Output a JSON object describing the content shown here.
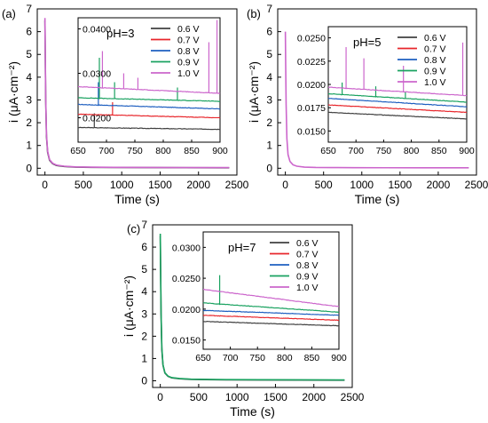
{
  "chart_data": [
    {
      "panel_label": "(a)",
      "type": "line",
      "xlabel": "Time (s)",
      "ylabel": "i (μA·cm⁻²)",
      "xlim": [
        -100,
        2500
      ],
      "ylim": [
        -0.3,
        7
      ],
      "xticks": [
        0,
        500,
        1000,
        1500,
        2000,
        2500
      ],
      "yticks": [
        0,
        1,
        2,
        3,
        4,
        5,
        6,
        7
      ],
      "grid": false,
      "main_series": [
        {
          "name": "0.6 V",
          "color": "#404040",
          "x": [
            0,
            4,
            10,
            20,
            35,
            60,
            100,
            150,
            250,
            400,
            600,
            900,
            1300,
            1800,
            2400
          ],
          "y": [
            6.5,
            5.0,
            3.0,
            1.4,
            0.7,
            0.35,
            0.2,
            0.12,
            0.08,
            0.05,
            0.04,
            0.035,
            0.03,
            0.025,
            0.02
          ]
        },
        {
          "name": "1.0 V",
          "color": "#cc66cc",
          "x": [
            0,
            4,
            10,
            20,
            35,
            60,
            100,
            150,
            250,
            400,
            600,
            900,
            1300,
            1800,
            2400
          ],
          "y": [
            6.6,
            5.1,
            3.1,
            1.5,
            0.75,
            0.38,
            0.22,
            0.14,
            0.09,
            0.06,
            0.05,
            0.04,
            0.035,
            0.03,
            0.028
          ]
        }
      ],
      "inset": {
        "annotation": "pH=3",
        "xlim": [
          650,
          900
        ],
        "ylim": [
          0.0145,
          0.0425
        ],
        "xticks": [
          650,
          700,
          750,
          800,
          850,
          900
        ],
        "yticks": [
          0.02,
          0.03,
          0.04
        ],
        "ytick_labels": [
          "0.0200",
          "0.0300",
          "0.0400"
        ],
        "legend_position": "top-right",
        "series": [
          {
            "name": "0.6 V",
            "color": "#404040",
            "y_start": 0.0178,
            "y_end": 0.0174,
            "spikes": [
              [
                678,
                0.021
              ]
            ]
          },
          {
            "name": "0.7 V",
            "color": "#e8262b",
            "y_start": 0.0208,
            "y_end": 0.02,
            "spikes": [
              [
                710,
                0.0235
              ]
            ]
          },
          {
            "name": "0.8 V",
            "color": "#1e5fc0",
            "y_start": 0.023,
            "y_end": 0.022,
            "spikes": [
              [
                685,
                0.028
              ]
            ]
          },
          {
            "name": "0.9 V",
            "color": "#1aa260",
            "y_start": 0.0245,
            "y_end": 0.0237,
            "spikes": [
              [
                688,
                0.0335
              ],
              [
                715,
                0.028
              ],
              [
                825,
                0.0268
              ]
            ]
          },
          {
            "name": "1.0 V",
            "color": "#cc66cc",
            "y_start": 0.027,
            "y_end": 0.0255,
            "spikes": [
              [
                692,
                0.035
              ],
              [
                730,
                0.03
              ],
              [
                755,
                0.029
              ],
              [
                880,
                0.037
              ],
              [
                895,
                0.042
              ]
            ]
          }
        ]
      }
    },
    {
      "panel_label": "(b)",
      "type": "line",
      "xlabel": "Time (s)",
      "ylabel": "i (μA·cm⁻²)",
      "xlim": [
        -100,
        2500
      ],
      "ylim": [
        -0.3,
        7
      ],
      "xticks": [
        0,
        500,
        1000,
        1500,
        2000,
        2500
      ],
      "yticks": [
        0,
        1,
        2,
        3,
        4,
        5,
        6,
        7
      ],
      "grid": false,
      "main_series": [
        {
          "name": "1.0 V",
          "color": "#cc66cc",
          "x": [
            0,
            4,
            10,
            20,
            35,
            60,
            100,
            150,
            250,
            400,
            600,
            900,
            1300,
            1800,
            2400
          ],
          "y": [
            6.0,
            4.6,
            2.8,
            1.3,
            0.6,
            0.3,
            0.15,
            0.09,
            0.05,
            0.035,
            0.03,
            0.025,
            0.022,
            0.02,
            0.02
          ]
        }
      ],
      "inset": {
        "annotation": "pH=5",
        "xlim": [
          650,
          900
        ],
        "ylim": [
          0.0138,
          0.0262
        ],
        "xticks": [
          650,
          700,
          750,
          800,
          850,
          900
        ],
        "yticks": [
          0.015,
          0.0175,
          0.02,
          0.0225,
          0.025
        ],
        "ytick_labels": [
          "0.0150",
          "0.0175",
          "0.0200",
          "0.0225",
          "0.0250"
        ],
        "legend_position": "top-right",
        "series": [
          {
            "name": "0.6 V",
            "color": "#404040",
            "y_start": 0.017,
            "y_end": 0.0163,
            "spikes": []
          },
          {
            "name": "0.7 V",
            "color": "#e8262b",
            "y_start": 0.0178,
            "y_end": 0.017,
            "spikes": []
          },
          {
            "name": "0.8 V",
            "color": "#1e5fc0",
            "y_start": 0.0185,
            "y_end": 0.0176,
            "spikes": []
          },
          {
            "name": "0.9 V",
            "color": "#1aa260",
            "y_start": 0.019,
            "y_end": 0.0181,
            "spikes": [
              [
                675,
                0.0202
              ],
              [
                735,
                0.0198
              ],
              [
                790,
                0.0192
              ]
            ]
          },
          {
            "name": "1.0 V",
            "color": "#cc66cc",
            "y_start": 0.0197,
            "y_end": 0.0188,
            "spikes": [
              [
                682,
                0.024
              ],
              [
                715,
                0.0228
              ],
              [
                785,
                0.022
              ],
              [
                893,
                0.0245
              ]
            ]
          }
        ]
      }
    },
    {
      "panel_label": "(c)",
      "type": "line",
      "xlabel": "Time (s)",
      "ylabel": "i (μA·cm⁻²)",
      "xlim": [
        -100,
        2500
      ],
      "ylim": [
        -0.3,
        7
      ],
      "xticks": [
        0,
        500,
        1000,
        1500,
        2000,
        2500
      ],
      "yticks": [
        0,
        1,
        2,
        3,
        4,
        5,
        6,
        7
      ],
      "grid": false,
      "main_series": [
        {
          "name": "0.6 V",
          "color": "#404040",
          "x": [
            0,
            4,
            10,
            20,
            35,
            60,
            100,
            150,
            250,
            400,
            600,
            900,
            1300,
            1800,
            2400
          ],
          "y": [
            6.5,
            5.0,
            3.0,
            1.4,
            0.7,
            0.35,
            0.2,
            0.13,
            0.09,
            0.06,
            0.05,
            0.04,
            0.035,
            0.03,
            0.028
          ]
        },
        {
          "name": "0.9 V",
          "color": "#1aa260",
          "x": [
            0,
            4,
            10,
            20,
            35,
            60,
            100,
            150,
            250,
            400,
            600,
            900,
            1300,
            1800,
            2400
          ],
          "y": [
            6.6,
            5.1,
            3.1,
            1.5,
            0.72,
            0.36,
            0.21,
            0.14,
            0.1,
            0.07,
            0.06,
            0.05,
            0.045,
            0.04,
            0.035
          ]
        }
      ],
      "inset": {
        "annotation": "pH=7",
        "xlim": [
          650,
          900
        ],
        "ylim": [
          0.0135,
          0.0325
        ],
        "xticks": [
          650,
          700,
          750,
          800,
          850,
          900
        ],
        "yticks": [
          0.015,
          0.02,
          0.025,
          0.03
        ],
        "ytick_labels": [
          "0.0150",
          "0.0200",
          "0.0250",
          "0.0300"
        ],
        "legend_position": "top-right",
        "series": [
          {
            "name": "0.6 V",
            "color": "#404040",
            "y_start": 0.018,
            "y_end": 0.0173,
            "spikes": []
          },
          {
            "name": "0.7 V",
            "color": "#e8262b",
            "y_start": 0.019,
            "y_end": 0.0182,
            "spikes": []
          },
          {
            "name": "0.8 V",
            "color": "#1e5fc0",
            "y_start": 0.0198,
            "y_end": 0.019,
            "spikes": []
          },
          {
            "name": "0.9 V",
            "color": "#1aa260",
            "y_start": 0.021,
            "y_end": 0.0195,
            "spikes": [
              [
                680,
                0.0255
              ]
            ]
          },
          {
            "name": "1.0 V",
            "color": "#cc66cc",
            "y_start": 0.0232,
            "y_end": 0.0204,
            "spikes": []
          }
        ]
      }
    }
  ]
}
